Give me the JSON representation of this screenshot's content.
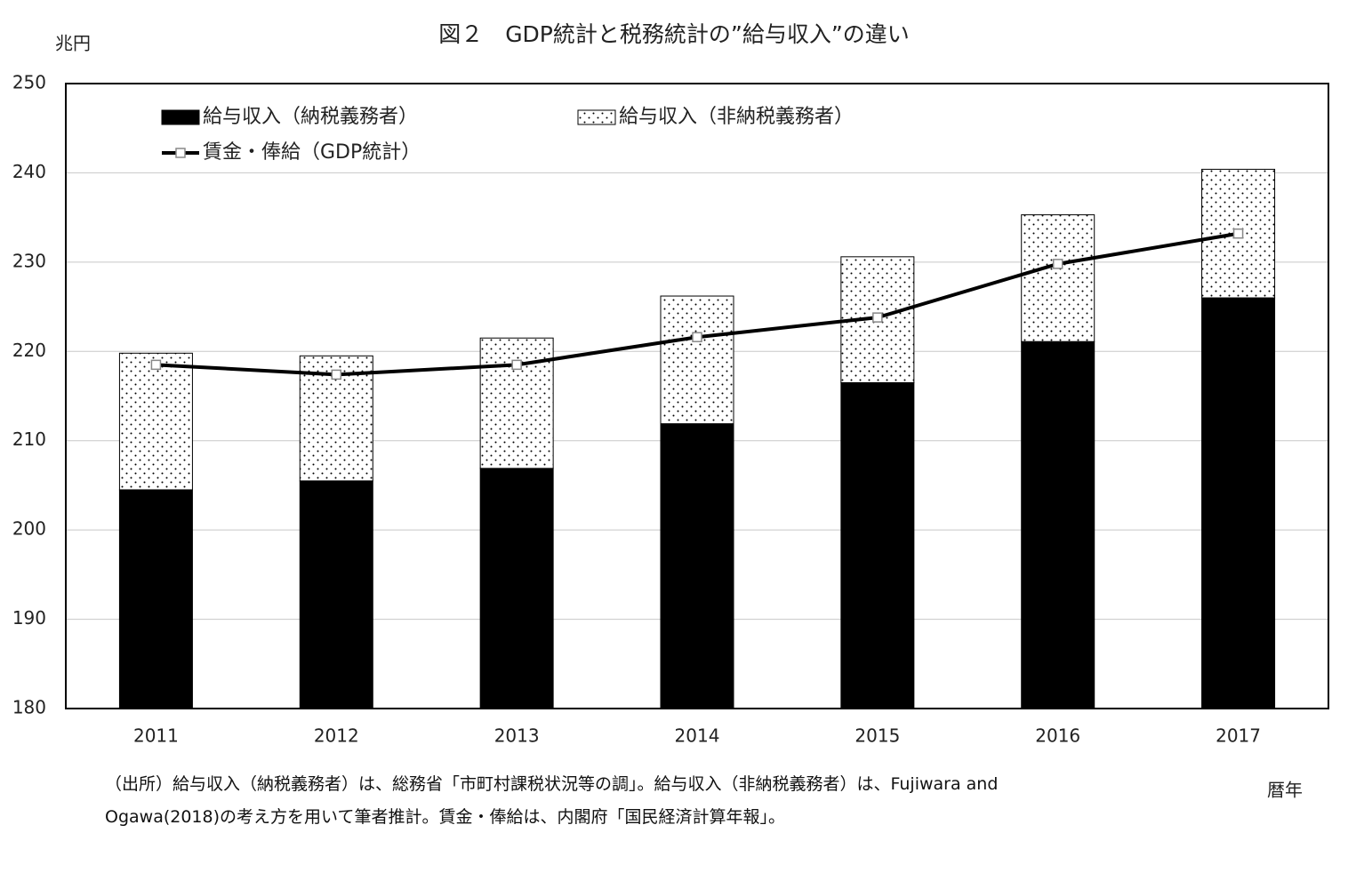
{
  "chart_data": {
    "type": "bar",
    "title": "図２　GDP統計と税務統計の”給与収入”の違い",
    "y_label": "兆円",
    "x_label": "暦年",
    "categories": [
      "2011",
      "2012",
      "2013",
      "2014",
      "2015",
      "2016",
      "2017"
    ],
    "series": [
      {
        "name": "給与収入（納税義務者）",
        "type": "bar",
        "color": "#000000",
        "values": [
          204.5,
          205.5,
          206.9,
          211.9,
          216.5,
          221.1,
          226.0
        ]
      },
      {
        "name": "給与収入（非納税義務者）",
        "type": "bar",
        "color": "#ffffff",
        "pattern": "dots",
        "values": [
          15.3,
          14.0,
          14.6,
          14.3,
          14.1,
          14.2,
          14.4
        ]
      },
      {
        "name": "賃金・俸給（GDP統計）",
        "type": "line",
        "color": "#000000",
        "marker": "square",
        "values": [
          218.5,
          217.4,
          218.5,
          221.6,
          223.8,
          229.8,
          233.2
        ]
      }
    ],
    "ylim": [
      180,
      250
    ],
    "yticks": [
      180,
      190,
      200,
      210,
      220,
      230,
      240,
      250
    ],
    "grid": true,
    "legend": "top-left",
    "notes": [
      "（出所）給与収入（納税義務者）は、総務省「市町村課税状況等の調」。給与収入（非納税義務者）は、Fujiwara and",
      "Ogawa(2018)の考え方を用いて筆者推計。賃金・俸給は、内閣府「国民経済計算年報」。"
    ]
  }
}
